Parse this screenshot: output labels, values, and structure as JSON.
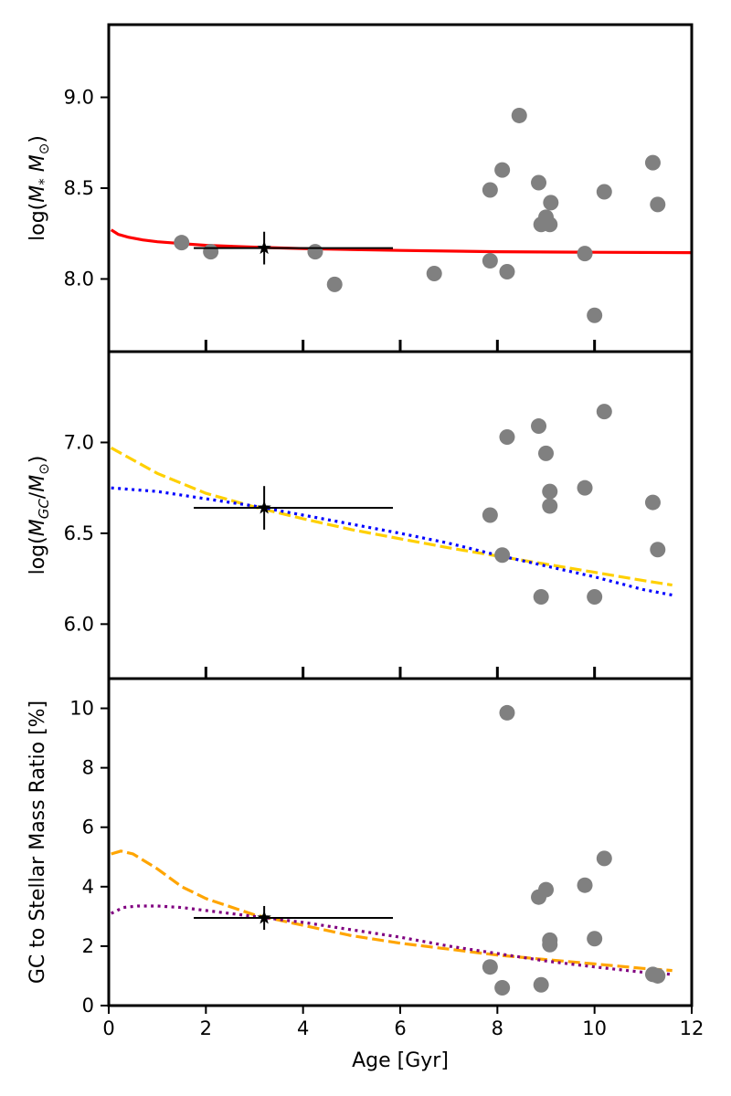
{
  "chart_data": [
    {
      "type": "scatter",
      "panel": "stellar-mass",
      "ylabel": "log(M* M⊙)",
      "xlim": [
        0,
        12
      ],
      "ylim": [
        7.6,
        9.4
      ],
      "yticks": [
        8.0,
        8.5,
        9.0
      ],
      "ytick_labels": [
        "8.0",
        "8.5",
        "9.0"
      ],
      "points": [
        {
          "x": 1.5,
          "y": 8.2
        },
        {
          "x": 2.1,
          "y": 8.15
        },
        {
          "x": 4.25,
          "y": 8.15
        },
        {
          "x": 4.65,
          "y": 7.97
        },
        {
          "x": 6.7,
          "y": 8.03
        },
        {
          "x": 7.85,
          "y": 8.1
        },
        {
          "x": 7.85,
          "y": 8.49
        },
        {
          "x": 8.1,
          "y": 8.6
        },
        {
          "x": 8.2,
          "y": 8.04
        },
        {
          "x": 8.45,
          "y": 8.9
        },
        {
          "x": 8.85,
          "y": 8.53
        },
        {
          "x": 8.9,
          "y": 8.3
        },
        {
          "x": 9.0,
          "y": 8.34
        },
        {
          "x": 9.08,
          "y": 8.3
        },
        {
          "x": 9.1,
          "y": 8.42
        },
        {
          "x": 9.8,
          "y": 8.14
        },
        {
          "x": 10.0,
          "y": 7.8
        },
        {
          "x": 10.2,
          "y": 8.48
        },
        {
          "x": 11.2,
          "y": 8.64
        },
        {
          "x": 11.3,
          "y": 8.41
        }
      ],
      "star": {
        "x": 3.2,
        "y": 8.17,
        "xerr_lo": 1.45,
        "xerr_hi": 2.65,
        "yerr": 0.09
      },
      "lines": [
        {
          "name": "model",
          "color": "#ff0000",
          "style": "solid",
          "x": [
            0.05,
            0.2,
            0.4,
            0.7,
            1.0,
            1.5,
            2,
            3,
            4,
            6,
            8,
            10,
            12
          ],
          "y": [
            8.27,
            8.245,
            8.23,
            8.215,
            8.205,
            8.195,
            8.185,
            8.175,
            8.167,
            8.157,
            8.15,
            8.147,
            8.145
          ]
        }
      ]
    },
    {
      "type": "scatter",
      "panel": "gc-mass",
      "ylabel": "log(MGC/M⊙)",
      "xlim": [
        0,
        12
      ],
      "ylim": [
        5.7,
        7.5
      ],
      "yticks": [
        6.0,
        6.5,
        7.0
      ],
      "ytick_labels": [
        "6.0",
        "6.5",
        "7.0"
      ],
      "points": [
        {
          "x": 7.85,
          "y": 6.6
        },
        {
          "x": 8.1,
          "y": 6.38
        },
        {
          "x": 8.2,
          "y": 7.03
        },
        {
          "x": 8.85,
          "y": 7.09
        },
        {
          "x": 8.9,
          "y": 6.15
        },
        {
          "x": 9.0,
          "y": 6.94
        },
        {
          "x": 9.08,
          "y": 6.73
        },
        {
          "x": 9.08,
          "y": 6.65
        },
        {
          "x": 9.8,
          "y": 6.75
        },
        {
          "x": 10.0,
          "y": 6.15
        },
        {
          "x": 10.2,
          "y": 7.17
        },
        {
          "x": 11.2,
          "y": 6.67
        },
        {
          "x": 11.3,
          "y": 6.41
        }
      ],
      "star": {
        "x": 3.2,
        "y": 6.64,
        "xerr_lo": 1.45,
        "xerr_hi": 2.65,
        "yerr": 0.12
      },
      "lines": [
        {
          "name": "dashed",
          "color": "#ffd000",
          "style": "dashed",
          "x": [
            0.05,
            1,
            2,
            3,
            4,
            5,
            6,
            7,
            8,
            9,
            10,
            11,
            11.6
          ],
          "y": [
            6.97,
            6.83,
            6.72,
            6.645,
            6.58,
            6.52,
            6.47,
            6.42,
            6.375,
            6.33,
            6.285,
            6.24,
            6.215
          ]
        },
        {
          "name": "dotted",
          "color": "#0000ff",
          "style": "dotted",
          "x": [
            0.05,
            1,
            2,
            3,
            4,
            5,
            6,
            7,
            8,
            9,
            10,
            11,
            11.6
          ],
          "y": [
            6.75,
            6.73,
            6.69,
            6.65,
            6.6,
            6.55,
            6.5,
            6.445,
            6.38,
            6.32,
            6.26,
            6.19,
            6.16
          ]
        }
      ]
    },
    {
      "type": "scatter",
      "panel": "gc-ratio",
      "ylabel": "GC to Stellar Mass Ratio [%]",
      "xlabel": "Age [Gyr]",
      "xlim": [
        0,
        12
      ],
      "ylim": [
        0,
        11
      ],
      "yticks": [
        0,
        2,
        4,
        6,
        8,
        10
      ],
      "ytick_labels": [
        "0",
        "2",
        "4",
        "6",
        "8",
        "10"
      ],
      "xticks": [
        0,
        2,
        4,
        6,
        8,
        10,
        12
      ],
      "xtick_labels": [
        "0",
        "2",
        "4",
        "6",
        "8",
        "10",
        "12"
      ],
      "points": [
        {
          "x": 7.85,
          "y": 1.3
        },
        {
          "x": 8.1,
          "y": 0.6
        },
        {
          "x": 8.2,
          "y": 9.85
        },
        {
          "x": 8.85,
          "y": 3.65
        },
        {
          "x": 8.9,
          "y": 0.7
        },
        {
          "x": 9.0,
          "y": 3.9
        },
        {
          "x": 9.08,
          "y": 2.2
        },
        {
          "x": 9.08,
          "y": 2.05
        },
        {
          "x": 9.8,
          "y": 4.05
        },
        {
          "x": 10.0,
          "y": 2.25
        },
        {
          "x": 10.2,
          "y": 4.95
        },
        {
          "x": 11.2,
          "y": 1.05
        },
        {
          "x": 11.3,
          "y": 1.0
        }
      ],
      "star": {
        "x": 3.2,
        "y": 2.95,
        "xerr_lo": 1.45,
        "xerr_hi": 2.65,
        "yerr": 0.4
      },
      "lines": [
        {
          "name": "dashed",
          "color": "#ffa500",
          "style": "dashed",
          "x": [
            0.05,
            0.25,
            0.5,
            1,
            1.5,
            2,
            3,
            4,
            5,
            6,
            7,
            8,
            9,
            10,
            11,
            11.6
          ],
          "y": [
            5.1,
            5.2,
            5.1,
            4.6,
            4.0,
            3.6,
            3.05,
            2.7,
            2.35,
            2.1,
            1.9,
            1.7,
            1.55,
            1.4,
            1.25,
            1.18
          ]
        },
        {
          "name": "dotted",
          "color": "#800080",
          "style": "dotted",
          "x": [
            0.05,
            0.3,
            0.6,
            1,
            1.5,
            2,
            3,
            4,
            5,
            6,
            7,
            8,
            9,
            10,
            11,
            11.6
          ],
          "y": [
            3.1,
            3.3,
            3.35,
            3.35,
            3.3,
            3.2,
            3.0,
            2.8,
            2.55,
            2.3,
            2.0,
            1.75,
            1.5,
            1.3,
            1.12,
            1.05
          ]
        }
      ]
    }
  ]
}
